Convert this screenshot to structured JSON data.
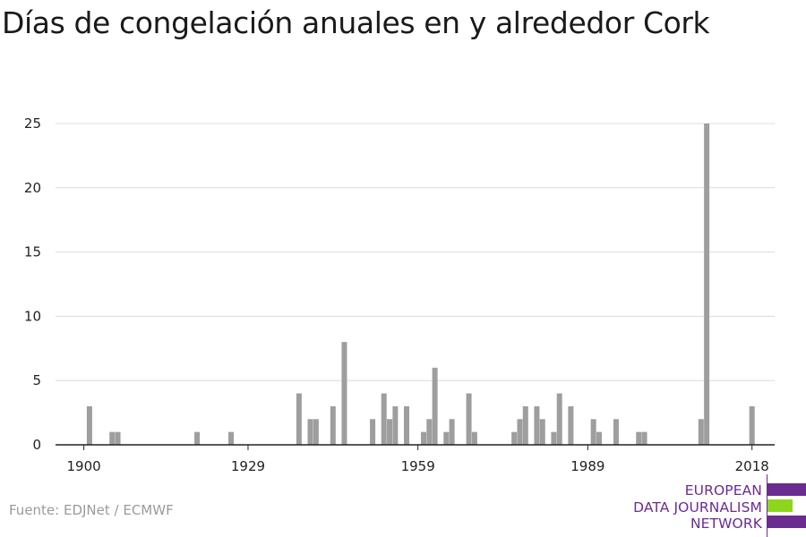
{
  "title": "Días de congelación anuales en y alrededor Cork",
  "source": "Fuente: EDJNet / ECMWF",
  "logo": {
    "lines": [
      "EUROPEAN",
      "DATA JOURNALISM",
      "NETWORK"
    ]
  },
  "colors": {
    "bar": "#9e9e9e",
    "grid": "#dcdcdc",
    "axis": "#222222",
    "logo_purple": "#6b2c91",
    "logo_green": "#8ed61e"
  },
  "chart_data": {
    "type": "bar",
    "title": "Días de congelación anuales en y alrededor Cork",
    "xlabel": "",
    "ylabel": "",
    "x_ticks": [
      1900,
      1929,
      1959,
      1989,
      2018
    ],
    "y_ticks": [
      0,
      5,
      10,
      15,
      20,
      25
    ],
    "xlim": [
      1895,
      2022
    ],
    "ylim": [
      0,
      25
    ],
    "grid": true,
    "x": [
      1901,
      1905,
      1906,
      1920,
      1926,
      1938,
      1940,
      1941,
      1944,
      1946,
      1951,
      1953,
      1954,
      1955,
      1957,
      1960,
      1961,
      1962,
      1964,
      1965,
      1968,
      1969,
      1976,
      1977,
      1978,
      1980,
      1981,
      1983,
      1984,
      1986,
      1990,
      1991,
      1994,
      1998,
      1999,
      2009,
      2010,
      2018
    ],
    "values": [
      3,
      1,
      1,
      1,
      1,
      4,
      2,
      2,
      3,
      8,
      2,
      4,
      2,
      3,
      3,
      1,
      2,
      6,
      1,
      2,
      4,
      1,
      1,
      2,
      3,
      3,
      2,
      1,
      4,
      3,
      2,
      1,
      2,
      1,
      1,
      2,
      25,
      3
    ]
  }
}
